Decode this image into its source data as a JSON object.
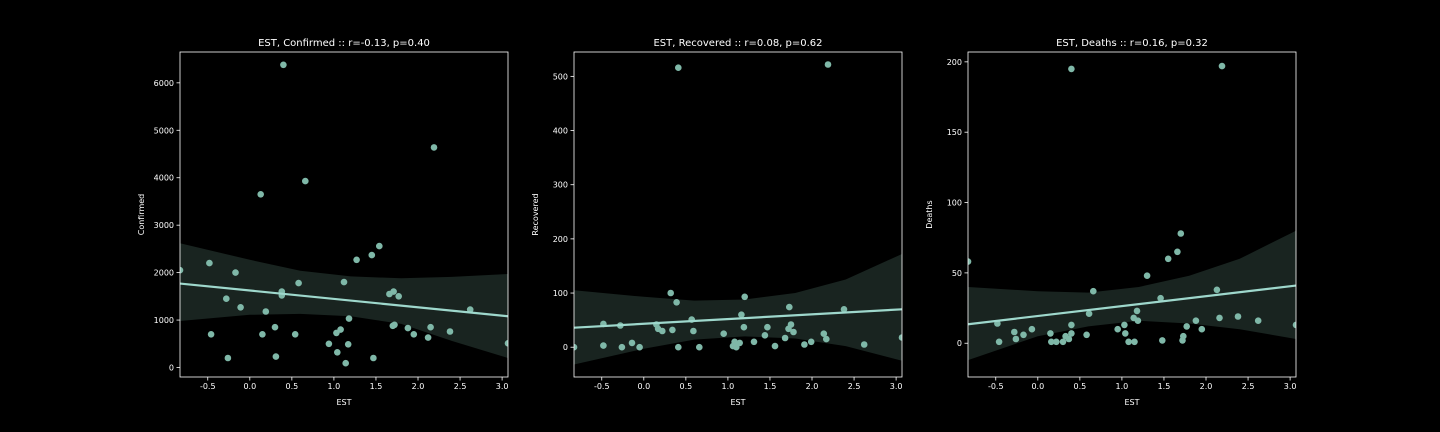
{
  "figure": {
    "background": "#000000",
    "point_color": "#7fb8a8",
    "line_color": "#9ed8cc",
    "ci_color": "#1a2622"
  },
  "chart_data": [
    {
      "type": "scatter",
      "title": "EST, Confirmed :: r=-0.13, p=0.40",
      "xlabel": "EST",
      "ylabel": "Confirmed",
      "xlim": [
        -0.83,
        3.07
      ],
      "ylim": [
        -200,
        6650
      ],
      "xticks": [
        -0.5,
        0.0,
        0.5,
        1.0,
        1.5,
        2.0,
        2.5,
        3.0
      ],
      "xtick_labels": [
        "-0.5",
        "0.0",
        "0.5",
        "1.0",
        "1.5",
        "2.0",
        "2.5",
        "3.0"
      ],
      "yticks": [
        0,
        1000,
        2000,
        3000,
        4000,
        5000,
        6000
      ],
      "ytick_labels": [
        "0",
        "1000",
        "2000",
        "3000",
        "4000",
        "5000",
        "6000"
      ],
      "points": [
        [
          -0.83,
          2050
        ],
        [
          -0.48,
          2200
        ],
        [
          -0.46,
          700
        ],
        [
          -0.28,
          1450
        ],
        [
          -0.26,
          200
        ],
        [
          -0.17,
          2000
        ],
        [
          -0.11,
          1270
        ],
        [
          0.13,
          3650
        ],
        [
          0.15,
          700
        ],
        [
          0.19,
          1180
        ],
        [
          0.3,
          850
        ],
        [
          0.31,
          230
        ],
        [
          0.38,
          1600
        ],
        [
          0.38,
          1520
        ],
        [
          0.4,
          6380
        ],
        [
          0.54,
          700
        ],
        [
          0.58,
          1780
        ],
        [
          0.66,
          3930
        ],
        [
          0.94,
          500
        ],
        [
          1.03,
          730
        ],
        [
          1.04,
          320
        ],
        [
          1.08,
          800
        ],
        [
          1.12,
          1800
        ],
        [
          1.14,
          90
        ],
        [
          1.17,
          490
        ],
        [
          1.18,
          1030
        ],
        [
          1.27,
          2270
        ],
        [
          1.45,
          2370
        ],
        [
          1.47,
          200
        ],
        [
          1.54,
          2560
        ],
        [
          1.66,
          1550
        ],
        [
          1.7,
          880
        ],
        [
          1.71,
          1600
        ],
        [
          1.72,
          900
        ],
        [
          1.77,
          1500
        ],
        [
          1.88,
          830
        ],
        [
          1.95,
          700
        ],
        [
          2.12,
          630
        ],
        [
          2.15,
          850
        ],
        [
          2.19,
          4640
        ],
        [
          2.38,
          760
        ],
        [
          2.62,
          1220
        ],
        [
          3.07,
          510
        ]
      ],
      "fit_line": [
        [
          -0.83,
          1770
        ],
        [
          3.07,
          1080
        ]
      ],
      "ci_upper": [
        [
          -0.83,
          2620
        ],
        [
          0.0,
          2270
        ],
        [
          0.6,
          2040
        ],
        [
          1.2,
          1920
        ],
        [
          1.8,
          1880
        ],
        [
          2.4,
          1910
        ],
        [
          3.07,
          1970
        ]
      ],
      "ci_lower": [
        [
          -0.83,
          980
        ],
        [
          0.0,
          1110
        ],
        [
          0.6,
          1130
        ],
        [
          1.2,
          1080
        ],
        [
          1.8,
          920
        ],
        [
          2.4,
          560
        ],
        [
          3.07,
          200
        ]
      ]
    },
    {
      "type": "scatter",
      "title": "EST, Recovered :: r=0.08, p=0.62",
      "xlabel": "EST",
      "ylabel": "Recovered",
      "xlim": [
        -0.83,
        3.07
      ],
      "ylim": [
        -55,
        545
      ],
      "xticks": [
        -0.5,
        0.0,
        0.5,
        1.0,
        1.5,
        2.0,
        2.5,
        3.0
      ],
      "xtick_labels": [
        "-0.5",
        "0.0",
        "0.5",
        "1.0",
        "1.5",
        "2.0",
        "2.5",
        "3.0"
      ],
      "yticks": [
        0,
        100,
        200,
        300,
        400,
        500
      ],
      "ytick_labels": [
        "0",
        "100",
        "200",
        "300",
        "400",
        "500"
      ],
      "points": [
        [
          -0.83,
          0
        ],
        [
          -0.48,
          43
        ],
        [
          -0.48,
          3
        ],
        [
          -0.28,
          40
        ],
        [
          -0.26,
          0
        ],
        [
          -0.14,
          8
        ],
        [
          -0.05,
          0
        ],
        [
          0.15,
          42
        ],
        [
          0.17,
          34
        ],
        [
          0.22,
          30
        ],
        [
          0.32,
          100
        ],
        [
          0.34,
          32
        ],
        [
          0.39,
          83
        ],
        [
          0.41,
          0
        ],
        [
          0.41,
          516
        ],
        [
          0.57,
          51
        ],
        [
          0.59,
          30
        ],
        [
          0.66,
          0
        ],
        [
          0.95,
          25
        ],
        [
          1.06,
          2
        ],
        [
          1.08,
          10
        ],
        [
          1.1,
          0
        ],
        [
          1.14,
          8
        ],
        [
          1.16,
          60
        ],
        [
          1.19,
          37
        ],
        [
          1.2,
          93
        ],
        [
          1.31,
          10
        ],
        [
          1.44,
          22
        ],
        [
          1.47,
          37
        ],
        [
          1.56,
          2
        ],
        [
          1.68,
          17
        ],
        [
          1.72,
          34
        ],
        [
          1.73,
          74
        ],
        [
          1.75,
          42
        ],
        [
          1.78,
          28
        ],
        [
          1.91,
          5
        ],
        [
          1.99,
          10
        ],
        [
          2.14,
          25
        ],
        [
          2.17,
          15
        ],
        [
          2.19,
          522
        ],
        [
          2.38,
          70
        ],
        [
          2.62,
          5
        ],
        [
          3.07,
          18
        ]
      ],
      "fit_line": [
        [
          -0.83,
          36
        ],
        [
          3.07,
          70
        ]
      ],
      "ci_upper": [
        [
          -0.83,
          105
        ],
        [
          0.0,
          93
        ],
        [
          0.6,
          86
        ],
        [
          1.2,
          88
        ],
        [
          1.8,
          100
        ],
        [
          2.4,
          125
        ],
        [
          3.07,
          172
        ]
      ],
      "ci_lower": [
        [
          -0.83,
          -32
        ],
        [
          0.0,
          -3
        ],
        [
          0.6,
          14
        ],
        [
          1.2,
          20
        ],
        [
          1.8,
          16
        ],
        [
          2.4,
          2
        ],
        [
          3.07,
          -25
        ]
      ]
    },
    {
      "type": "scatter",
      "title": "EST, Deaths :: r=0.16, p=0.32",
      "xlabel": "EST",
      "ylabel": "Deaths",
      "xlim": [
        -0.83,
        3.07
      ],
      "ylim": [
        -24,
        207
      ],
      "xticks": [
        -0.5,
        0.0,
        0.5,
        1.0,
        1.5,
        2.0,
        2.5,
        3.0
      ],
      "xtick_labels": [
        "-0.5",
        "0.0",
        "0.5",
        "1.0",
        "1.5",
        "2.0",
        "2.5",
        "3.0"
      ],
      "yticks": [
        0,
        50,
        100,
        150,
        200
      ],
      "ytick_labels": [
        "0",
        "50",
        "100",
        "150",
        "200"
      ],
      "points": [
        [
          -0.83,
          58
        ],
        [
          -0.48,
          14
        ],
        [
          -0.46,
          1
        ],
        [
          -0.28,
          8
        ],
        [
          -0.26,
          3
        ],
        [
          -0.17,
          6
        ],
        [
          -0.07,
          10
        ],
        [
          0.15,
          7
        ],
        [
          0.16,
          1
        ],
        [
          0.22,
          1
        ],
        [
          0.3,
          1
        ],
        [
          0.33,
          5
        ],
        [
          0.37,
          3
        ],
        [
          0.4,
          13
        ],
        [
          0.4,
          7
        ],
        [
          0.4,
          195
        ],
        [
          0.58,
          6
        ],
        [
          0.61,
          21
        ],
        [
          0.66,
          37
        ],
        [
          0.95,
          10
        ],
        [
          1.03,
          13
        ],
        [
          1.04,
          7
        ],
        [
          1.08,
          1
        ],
        [
          1.14,
          18
        ],
        [
          1.15,
          1
        ],
        [
          1.18,
          23
        ],
        [
          1.19,
          16
        ],
        [
          1.3,
          48
        ],
        [
          1.46,
          32
        ],
        [
          1.48,
          2
        ],
        [
          1.55,
          60
        ],
        [
          1.66,
          65
        ],
        [
          1.7,
          78
        ],
        [
          1.72,
          2
        ],
        [
          1.73,
          5
        ],
        [
          1.77,
          12
        ],
        [
          1.88,
          16
        ],
        [
          1.95,
          10
        ],
        [
          2.13,
          38
        ],
        [
          2.16,
          18
        ],
        [
          2.19,
          197
        ],
        [
          2.38,
          19
        ],
        [
          2.62,
          16
        ],
        [
          3.07,
          13
        ]
      ],
      "fit_line": [
        [
          -0.83,
          13.5
        ],
        [
          3.07,
          41
        ]
      ],
      "ci_upper": [
        [
          -0.83,
          40
        ],
        [
          0.0,
          37
        ],
        [
          0.6,
          36
        ],
        [
          1.2,
          40
        ],
        [
          1.8,
          48
        ],
        [
          2.4,
          60
        ],
        [
          3.07,
          80
        ]
      ],
      "ci_lower": [
        [
          -0.83,
          -12
        ],
        [
          0.0,
          5
        ],
        [
          0.6,
          12
        ],
        [
          1.2,
          16
        ],
        [
          1.8,
          14
        ],
        [
          2.4,
          10
        ],
        [
          3.07,
          3
        ]
      ]
    }
  ]
}
